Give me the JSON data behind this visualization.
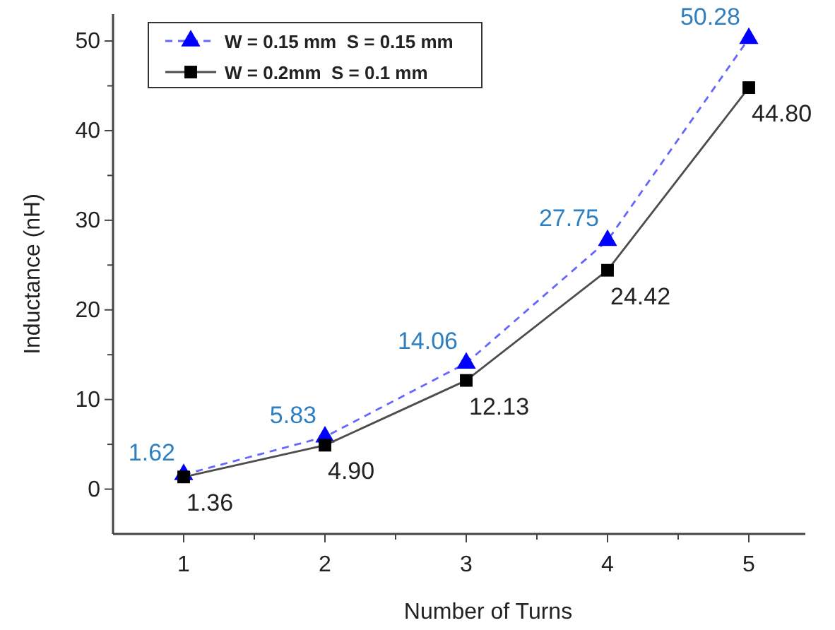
{
  "chart_data": {
    "type": "line",
    "xlabel": "Number of Turns",
    "ylabel": "Inductance (nH)",
    "x": [
      1,
      2,
      3,
      4,
      5
    ],
    "series": [
      {
        "name": "W = 0.15 mm  S = 0.15 mm",
        "color": "#0000ff",
        "line_style": "dashed",
        "marker": "triangle",
        "values": [
          1.62,
          5.83,
          14.06,
          27.75,
          50.28
        ],
        "value_labels": [
          "1.62",
          "5.83",
          "14.06",
          "27.75",
          "50.28"
        ]
      },
      {
        "name": "W = 0.2mm  S = 0.1 mm",
        "color": "#000000",
        "line_style": "solid",
        "marker": "square",
        "values": [
          1.36,
          4.9,
          12.13,
          24.42,
          44.8
        ],
        "value_labels": [
          "1.36",
          "4.90",
          "12.13",
          "24.42",
          "44.80"
        ]
      }
    ],
    "xlim": [
      0.5,
      5.4
    ],
    "ylim": [
      -5,
      53
    ],
    "xticks": [
      1,
      {
        "value": 1.5,
        "label": null
      },
      2,
      {
        "value": 2.5,
        "label": null
      },
      3,
      {
        "value": 3.5,
        "label": null
      },
      4,
      {
        "value": 4.5,
        "label": null
      },
      5
    ],
    "yticks": [
      0,
      {
        "value": 5,
        "label": null
      },
      10,
      {
        "value": 15,
        "label": null
      },
      20,
      {
        "value": 25,
        "label": null
      },
      30,
      {
        "value": 35,
        "label": null
      },
      40,
      {
        "value": 45,
        "label": null
      },
      50
    ],
    "legend": "top left",
    "grid": false
  }
}
